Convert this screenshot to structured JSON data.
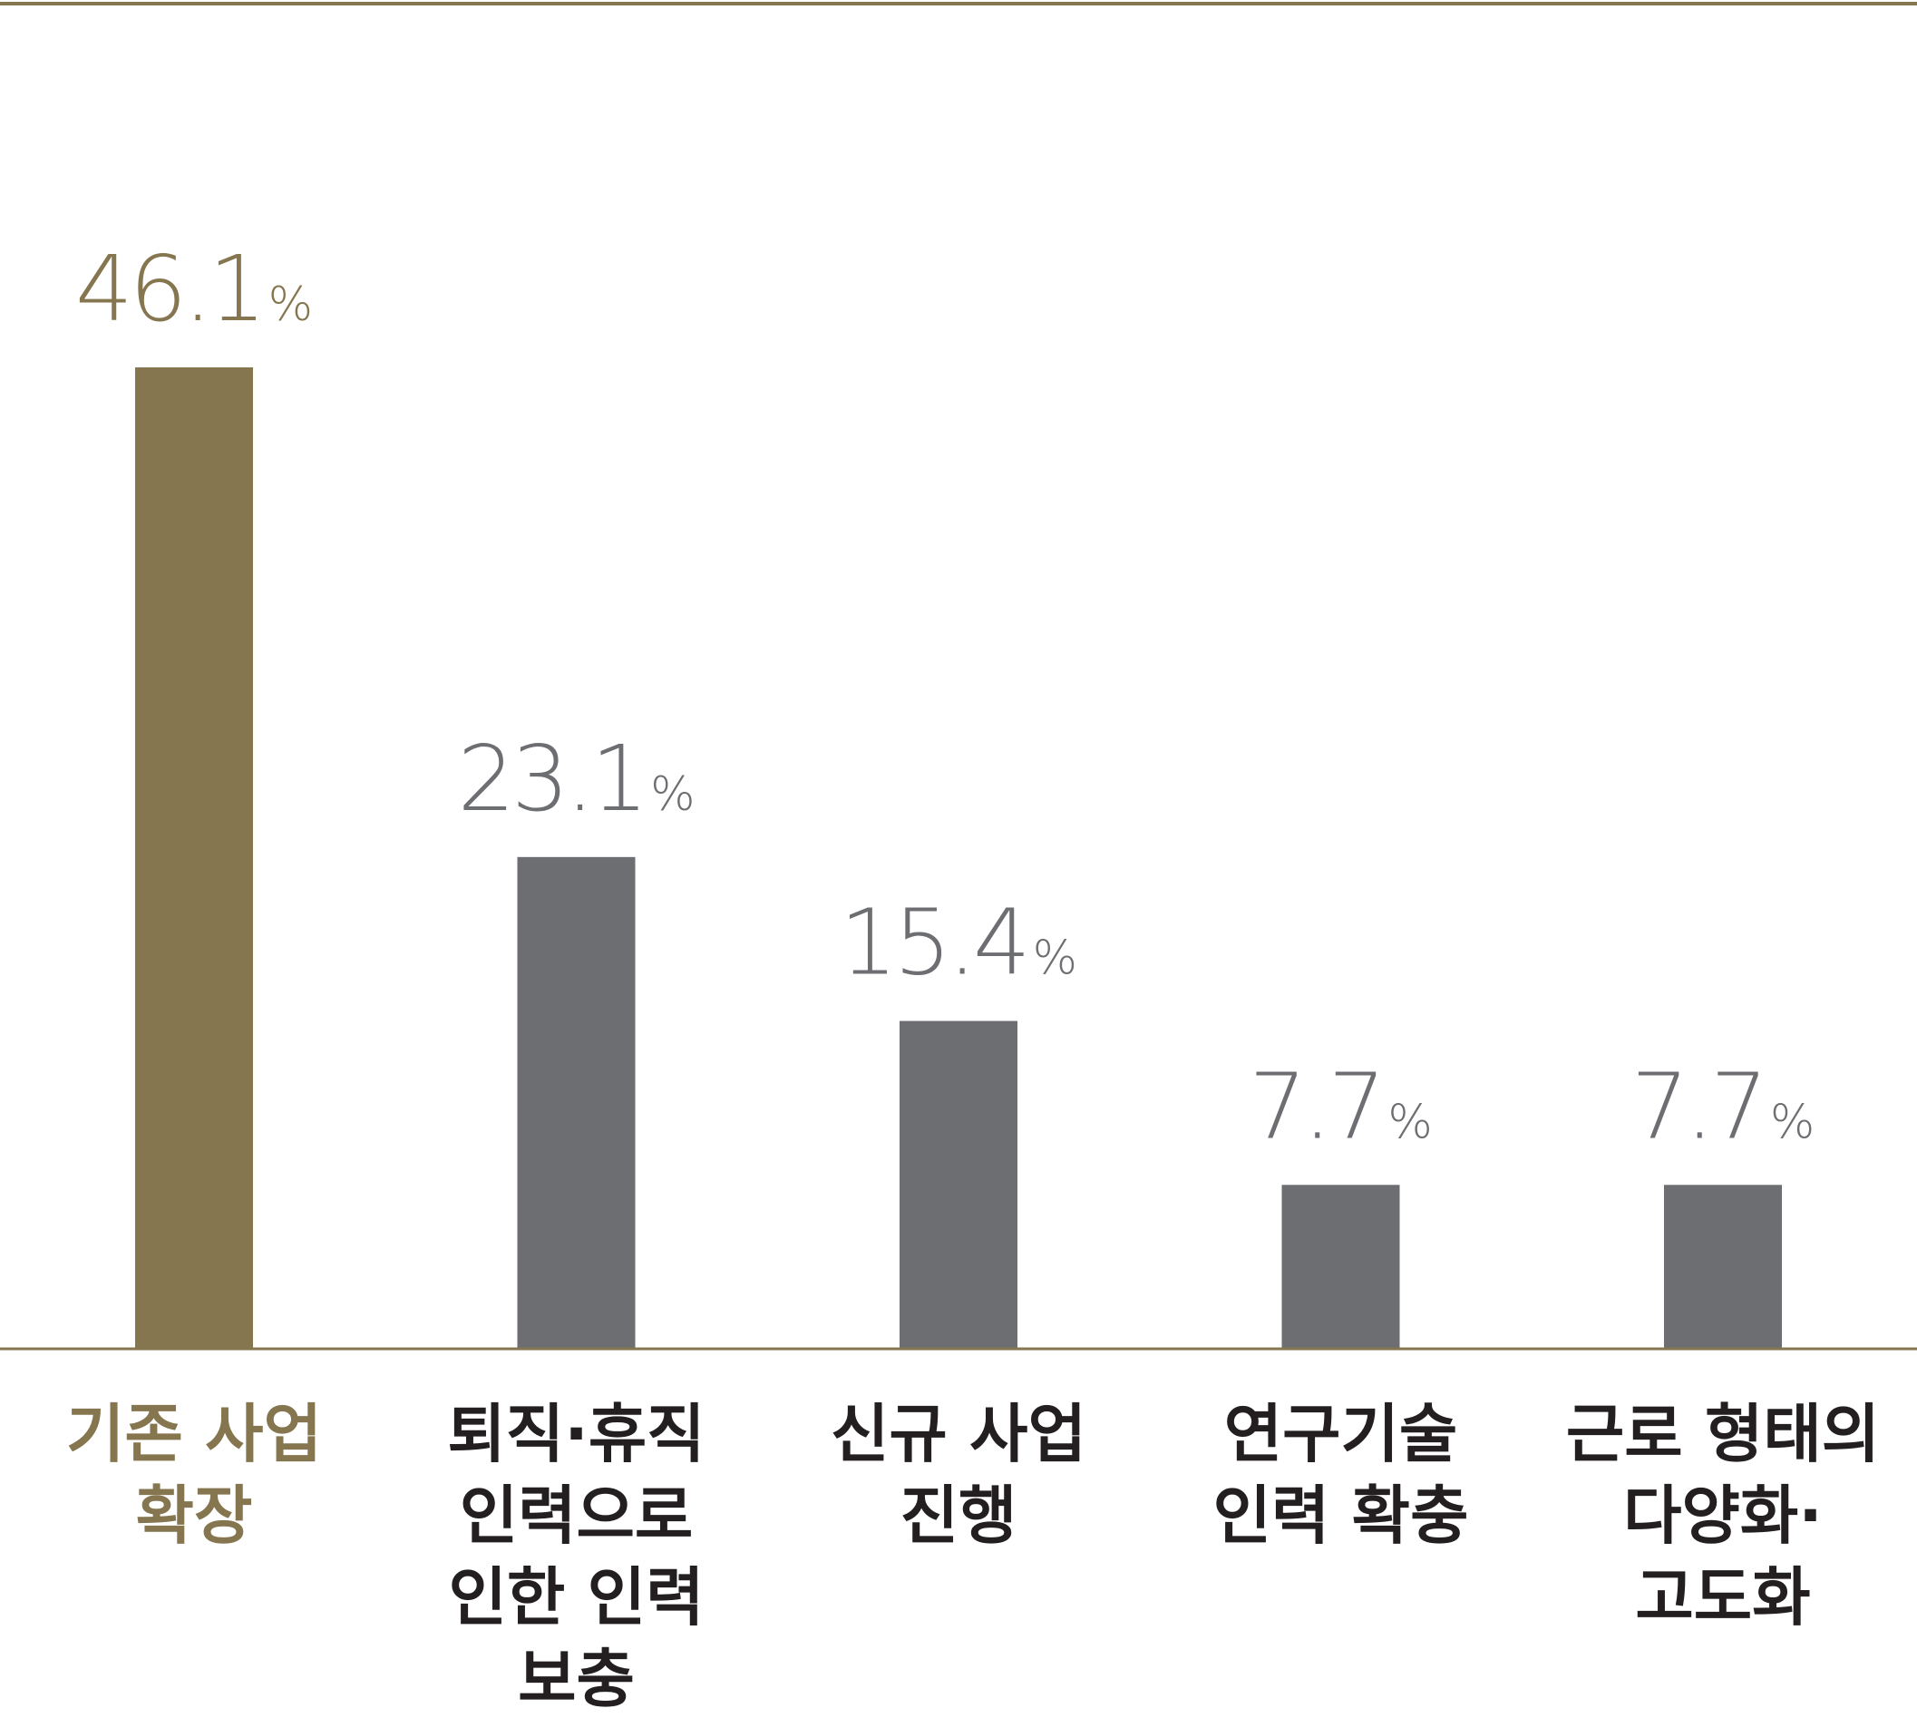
{
  "chart_data": {
    "type": "bar",
    "categories": [
      [
        "기존 사업",
        "확장"
      ],
      [
        "퇴직·휴직",
        "인력으로",
        "인한 인력",
        "보충"
      ],
      [
        "신규 사업",
        "진행"
      ],
      [
        "연구기술",
        "인력 확충"
      ],
      [
        "근로 형태의",
        "다양화·",
        "고도화"
      ]
    ],
    "values": [
      46.1,
      23.1,
      15.4,
      7.7,
      7.7
    ],
    "value_suffix": "%",
    "ylim": [
      0,
      60
    ],
    "highlight_index": 0,
    "colors": {
      "highlight": "#85764f",
      "bar": "#6d6e71",
      "highlight_text": "#85764f",
      "value_text": "#6d6e71",
      "category_text": "#231f20",
      "rule": "#85764f"
    },
    "title": "",
    "xlabel": "",
    "ylabel": "",
    "grid": false,
    "legend": false
  }
}
